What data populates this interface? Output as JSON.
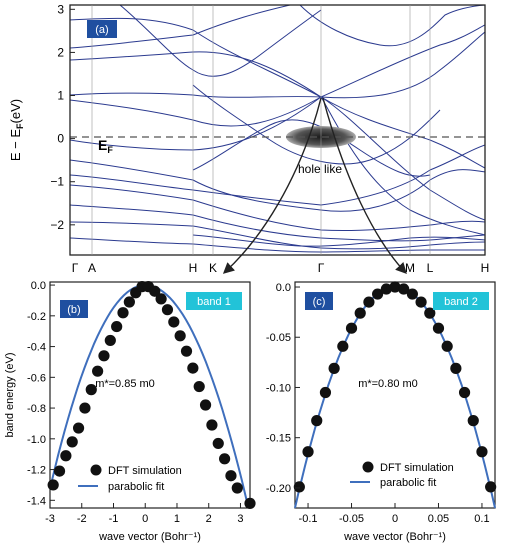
{
  "colors": {
    "band_line": "#2b3a8f",
    "fit_line": "#3f6fbd",
    "dft_marker": "#111111",
    "panel_tag_bg": "#1f4fa0",
    "band_tag_bg": "#22c3d8",
    "fermi_dash": "#555555",
    "arrow": "#222222"
  },
  "panel_a": {
    "tag": "(a)",
    "ylabel": "E − E",
    "ylabel_sub": "F",
    "ylabel_unit": "(eV)",
    "fermi_label": "E",
    "fermi_sub": "F",
    "hole_label": "hole like",
    "y_ticks": [
      "3",
      "2",
      "1",
      "0",
      "−1",
      "−2"
    ],
    "k_labels": [
      "Γ",
      "A",
      "H",
      "K",
      "Γ",
      "M",
      "L",
      "H"
    ]
  },
  "panel_b": {
    "tag": "(b)",
    "band_tag": "band 1",
    "mass_label": "m*=0.85 m0",
    "ylabel": "band energy (eV)",
    "xlabel": "wave vector (Bohr⁻¹)",
    "legend_dft": "DFT simulation",
    "legend_fit": "parabolic fit",
    "y_ticks": [
      "0.0",
      "-0.2",
      "-0.4",
      "-0.6",
      "-0.8",
      "-1.0",
      "-1.2",
      "-1.4"
    ],
    "x_ticks": [
      "-3",
      "-2",
      "-1",
      "0",
      "1",
      "2",
      "3"
    ]
  },
  "panel_c": {
    "tag": "(c)",
    "band_tag": "band 2",
    "mass_label": "m*=0.80 m0",
    "xlabel": "wave vector (Bohr⁻¹)",
    "legend_dft": "DFT simulation",
    "legend_fit": "parabolic fit",
    "y_ticks": [
      "0.0",
      "-0.05",
      "-0.10",
      "-0.15",
      "-0.20"
    ],
    "x_ticks": [
      "-0.1",
      "-0.05",
      "0",
      "0.05",
      "0.1"
    ]
  },
  "chart_data": [
    {
      "type": "line",
      "panel": "a",
      "ylabel": "E − EF (eV)",
      "ylim": [
        -2.7,
        3.1
      ],
      "x_categories": [
        "Γ",
        "A",
        "H",
        "K",
        "Γ",
        "M",
        "L",
        "H"
      ],
      "fermi_level": 0,
      "annotations": [
        "(a)",
        "EF",
        "hole like"
      ],
      "grid": false
    },
    {
      "type": "scatter",
      "panel": "b",
      "xlabel": "wave vector (Bohr⁻¹)",
      "ylabel": "band energy (eV)",
      "xlim": [
        -3,
        3.3
      ],
      "ylim": [
        -1.45,
        0.02
      ],
      "series": [
        {
          "name": "DFT simulation",
          "style": "markers",
          "x": [
            -2.9,
            -2.7,
            -2.5,
            -2.3,
            -2.1,
            -1.9,
            -1.7,
            -1.5,
            -1.3,
            -1.1,
            -0.9,
            -0.7,
            -0.5,
            -0.3,
            -0.1,
            0.1,
            0.3,
            0.5,
            0.7,
            0.9,
            1.1,
            1.3,
            1.5,
            1.7,
            1.9,
            2.1,
            2.3,
            2.5,
            2.7,
            2.9,
            3.3
          ],
          "y": [
            -1.3,
            -1.21,
            -1.11,
            -1.02,
            -0.93,
            -0.8,
            -0.68,
            -0.56,
            -0.46,
            -0.36,
            -0.27,
            -0.18,
            -0.11,
            -0.05,
            -0.01,
            -0.01,
            -0.04,
            -0.09,
            -0.16,
            -0.24,
            -0.33,
            -0.43,
            -0.54,
            -0.66,
            -0.78,
            -0.91,
            -1.03,
            -1.13,
            -1.24,
            -1.32,
            -1.42
          ]
        },
        {
          "name": "parabolic fit",
          "style": "line",
          "x": [
            -2.95,
            0,
            3.25
          ],
          "y": [
            -1.28,
            0,
            -1.45
          ]
        }
      ],
      "annotations": [
        "m*=0.85 m0",
        "band 1"
      ]
    },
    {
      "type": "scatter",
      "panel": "c",
      "xlabel": "wave vector (Bohr⁻¹)",
      "xlim": [
        -0.115,
        0.115
      ],
      "ylim": [
        -0.22,
        0.005
      ],
      "series": [
        {
          "name": "DFT simulation",
          "style": "markers",
          "x": [
            -0.11,
            -0.1,
            -0.09,
            -0.08,
            -0.07,
            -0.06,
            -0.05,
            -0.04,
            -0.03,
            -0.02,
            -0.01,
            0,
            0.01,
            0.02,
            0.03,
            0.04,
            0.05,
            0.06,
            0.07,
            0.08,
            0.09,
            0.1,
            0.11
          ],
          "y": [
            -0.199,
            -0.164,
            -0.133,
            -0.105,
            -0.081,
            -0.059,
            -0.041,
            -0.026,
            -0.015,
            -0.007,
            -0.002,
            0.0,
            -0.002,
            -0.007,
            -0.015,
            -0.026,
            -0.041,
            -0.059,
            -0.081,
            -0.105,
            -0.133,
            -0.164,
            -0.199
          ]
        },
        {
          "name": "parabolic fit",
          "style": "line",
          "x": [
            -0.115,
            0,
            0.115
          ],
          "y": [
            -0.22,
            0,
            -0.22
          ]
        }
      ],
      "annotations": [
        "m*=0.80 m0",
        "band 2"
      ]
    }
  ]
}
